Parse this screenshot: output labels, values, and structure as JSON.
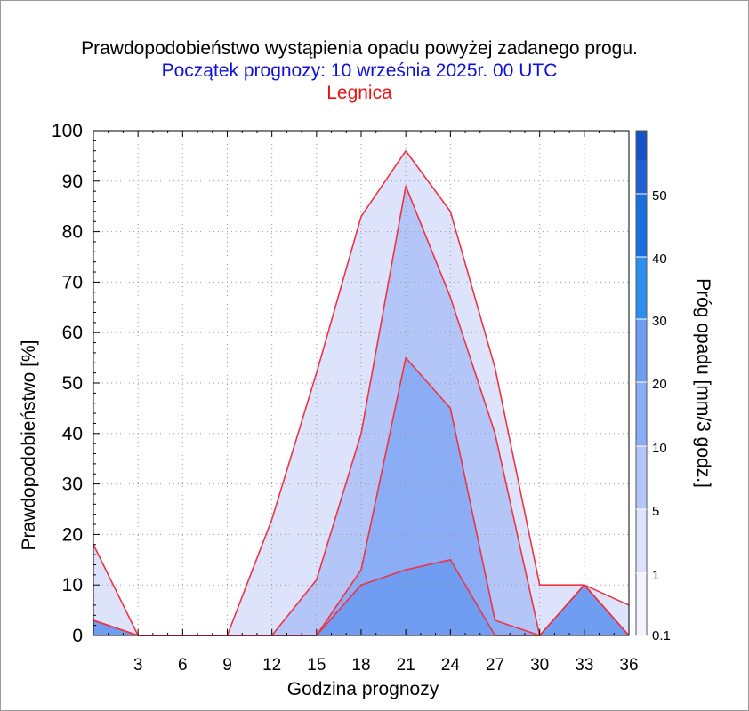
{
  "header": {
    "title": "Prawdopodobieństwo wystąpienia opadu powyżej zadanego progu.",
    "subtitle": "Początek prognozy: 10 września 2025r. 00 UTC",
    "location": "Legnica",
    "title_color": "#000000",
    "subtitle_color": "#1010dd",
    "location_color": "#ee1111"
  },
  "chart_data": {
    "type": "area",
    "title": "Prawdopodobieństwo wystąpienia opadu powyżej zadanego progu.",
    "xlabel": "Godzina prognozy",
    "ylabel": "Prawdopodobieństwo [%]",
    "xlim": [
      0,
      36
    ],
    "ylim": [
      0,
      100
    ],
    "x_ticks": [
      3,
      6,
      9,
      12,
      15,
      18,
      21,
      24,
      27,
      30,
      33,
      36
    ],
    "y_ticks": [
      0,
      10,
      20,
      30,
      40,
      50,
      60,
      70,
      80,
      90,
      100
    ],
    "x_tick_labels": [
      "3",
      "6",
      "9",
      "12",
      "15",
      "18",
      "21",
      "24",
      "27",
      "30",
      "33",
      "36"
    ],
    "y_tick_labels": [
      "0",
      "10",
      "20",
      "30",
      "40",
      "50",
      "60",
      "70",
      "80",
      "90",
      "100"
    ],
    "grid": true,
    "line_color": "#ee3344",
    "x": [
      0,
      3,
      6,
      9,
      12,
      15,
      18,
      21,
      24,
      27,
      30,
      33,
      36
    ],
    "series": [
      {
        "color": "#dde3fb",
        "values": [
          18,
          0,
          0,
          0,
          23,
          52,
          83,
          96,
          84,
          53,
          10,
          10,
          6
        ]
      },
      {
        "color": "#b4c6f7",
        "values": [
          3,
          0,
          0,
          0,
          0,
          11,
          40,
          89,
          67,
          40,
          0,
          10,
          0
        ]
      },
      {
        "color": "#8aadf5",
        "values": [
          3,
          0,
          0,
          0,
          0,
          0,
          13,
          55,
          45,
          3,
          0,
          10,
          0
        ]
      },
      {
        "color": "#6e9df2",
        "values": [
          3,
          0,
          0,
          0,
          0,
          0,
          10,
          13,
          15,
          0,
          0,
          10,
          0
        ]
      }
    ],
    "colorbar": {
      "label": "Próg opadu [mm/3 godz.]",
      "tick_labels": [
        "0.1",
        "1",
        "5",
        "10",
        "20",
        "30",
        "40",
        "50"
      ],
      "segment_colors": [
        "#f2f5ff",
        "#dde3fb",
        "#b4c6f7",
        "#8aadf5",
        "#6e9df2",
        "#2b8ff0",
        "#1a6fe0",
        "#1f60d4",
        "#1552c8",
        "#0b3ba8"
      ]
    }
  }
}
